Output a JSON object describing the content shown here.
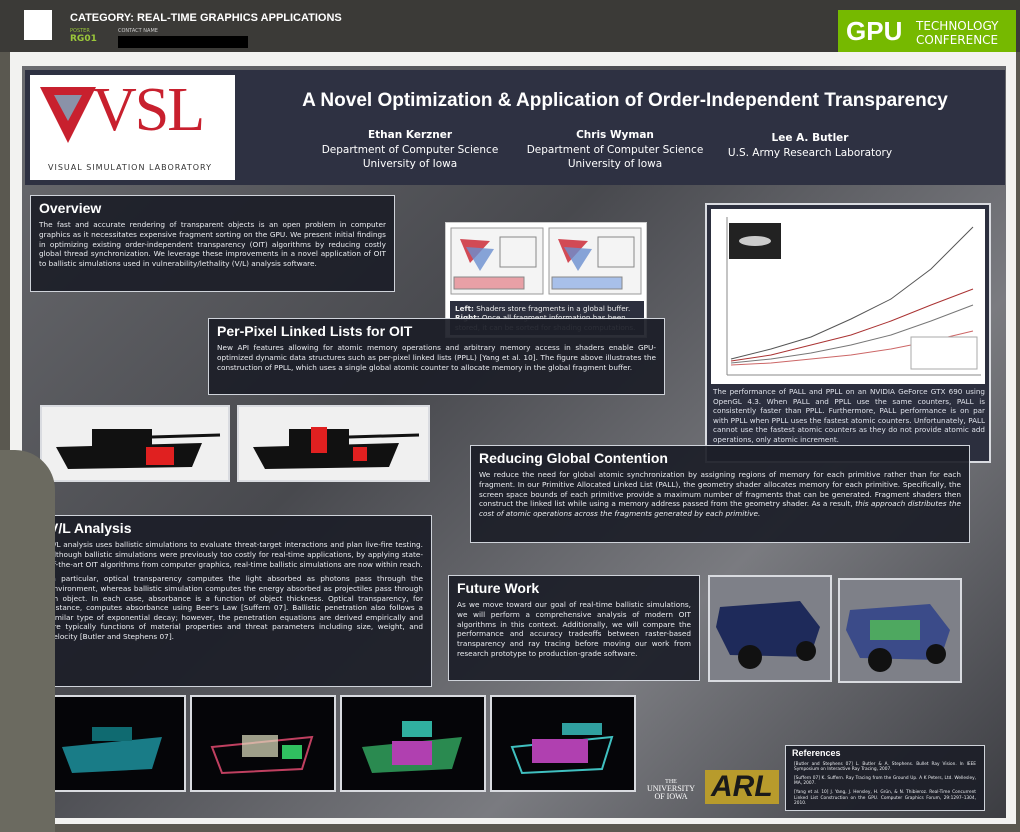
{
  "header": {
    "category": "CATEGORY: REAL-TIME GRAPHICS APPLICATIONS",
    "poster_label": "POSTER",
    "poster_id": "RG01",
    "contact_label": "CONTACT NAME",
    "conference_gpu": "GPU",
    "conference_tech": "TECHNOLOGY",
    "conference_conf": "CONFERENCE"
  },
  "logo": {
    "mark": "VSL",
    "caption": "VISUAL SIMULATION LABORATORY"
  },
  "title": "A Novel Optimization & Application of Order-Independent Transparency",
  "authors": [
    {
      "name": "Ethan Kerzner",
      "dept": "Department of Computer Science",
      "org": "University of Iowa"
    },
    {
      "name": "Chris Wyman",
      "dept": "Department of Computer Science",
      "org": "University of Iowa"
    },
    {
      "name": "Lee A. Butler",
      "org": "U.S. Army Research Laboratory"
    }
  ],
  "overview": {
    "heading": "Overview",
    "text": "The fast and accurate rendering of transparent objects is an open problem in computer graphics as it necessitates expensive fragment sorting on the GPU.  We present initial findings in optimizing existing order-independent transparency (OIT) algorithms by reducing costly global thread synchronization.  We leverage these improvements in a novel application of OIT to ballistic simulations used in vulnerability/lethality (V/L) analysis software."
  },
  "figure_caption": {
    "left_label": "Left:",
    "left_text": "Shaders store fragments in a global buffer.",
    "right_label": "Right:",
    "right_text": "Once all fragment information has been stored, it can be sorted for shading computations."
  },
  "ppll": {
    "heading": "Per-Pixel Linked Lists for OIT",
    "text": "New API features allowing for atomic memory operations and arbitrary memory access in shaders enable GPU-optimized dynamic data structures such as per-pixel linked lists (PPLL) [Yang et al. 10].  The figure above illustrates the construction of PPLL, which uses a single global atomic counter to allocate memory in the global fragment buffer."
  },
  "chart_caption": "The performance of PALL and PPLL on an NVIDIA GeForce GTX 690 using OpenGL 4.3. When PALL and PPLL use the same counters, PALL is consistently faster than PPLL.  Furthermore, PALL performance is on par with PPLL when PPLL uses the fastest atomic counters.  Unfortunately, PALL cannot use the fastest atomic counters as they do not provide atomic add operations, only atomic increment.",
  "reducing": {
    "heading": "Reducing Global Contention",
    "text": "We reduce the need for global atomic synchronization by assigning regions of memory for each primitive rather than for each fragment.  In our Primitive Allocated Linked List (PALL), the geometry shader allocates memory for each primitive.  Specifically, the screen space bounds of each primitive provide a maximum number of fragments that can be generated.  Fragment shaders then construct the linked list while using a memory address passed from the geometry shader.  As a result,",
    "emphasis": "this approach distributes the cost of atomic operations across the fragments generated by each primitive."
  },
  "vl": {
    "heading": "V/L Analysis",
    "p1": "V/L analysis uses ballistic simulations to evaluate threat-target interactions and plan live-fire testing. Although ballistic simulations were previously too costly for real-time applications, by applying state-of-the-art OIT algorithms from computer graphics, real-time ballistic simulations are now within reach.",
    "p2": "In particular, optical transparency computes the light absorbed as photons pass through the environment, whereas ballistic simulation computes the energy absorbed as projectiles pass through an object.  In each case, absorbance is a function of object thickness.  Optical transparency, for instance, computes absorbance using Beer's Law [Suffern 07].  Ballistic penetration also follows a similar type of exponential decay; however, the penetration equations are derived empirically and are typically functions of material properties and threat parameters including size, weight, and velocity [Butler and Stephens 07]."
  },
  "future": {
    "heading": "Future Work",
    "text": "As we move toward our goal of real-time ballistic simulations, we will perform a comprehensive analysis of modern OIT algorithms in this context.  Additionally, we will compare the performance and accuracy tradeoffs between raster-based transparency and ray tracing before moving our work from research prototype to production-grade software."
  },
  "references": {
    "heading": "References",
    "items": [
      "[Butler and Stephens 07] L. Butler & A. Stephens. Bullet Ray Vision. In IEEE Symposium on Interactive Ray Tracing, 2007.",
      "[Suffern 07] K. Suffern. Ray Tracing from the Ground Up. A K Peters, Ltd. Wellesley, MA, 2007.",
      "[Yang et al. 10] J. Yang, J. Hensley, H. Grün, & N. Thibieroz. Real-Time Concurrent Linked List Construction on the GPU. Computer Graphics Forum, 29:1297–1304, 2010."
    ]
  },
  "sponsors": {
    "univ_the": "THE",
    "univ_name": "UNIVERSITY",
    "univ_of": "OF IOWA",
    "arl": "ARL"
  }
}
